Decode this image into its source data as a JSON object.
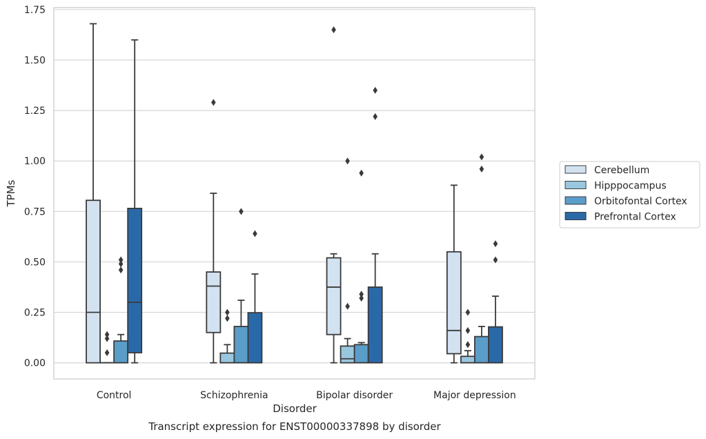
{
  "chart_data": {
    "type": "box",
    "title": "",
    "caption": "Transcript expression for ENST00000337898 by disorder",
    "xlabel": "Disorder",
    "ylabel": "TPMs",
    "ylim": [
      -0.08,
      1.76
    ],
    "yticks": [
      "0.00",
      "0.25",
      "0.50",
      "0.75",
      "1.00",
      "1.25",
      "1.50",
      "1.75"
    ],
    "grid": true,
    "legend_position": "right",
    "categories": [
      "Control",
      "Schizophrenia",
      "Bipolar disorder",
      "Major depression"
    ],
    "series": [
      {
        "name": "Cerebellum",
        "color": "#d2e2f1",
        "boxes": [
          {
            "min": 0.0,
            "q1": 0.0,
            "median": 0.25,
            "q3": 0.805,
            "max": 1.68,
            "outliers": []
          },
          {
            "min": 0.0,
            "q1": 0.15,
            "median": 0.38,
            "q3": 0.45,
            "max": 0.84,
            "outliers": [
              1.29
            ]
          },
          {
            "min": 0.0,
            "q1": 0.14,
            "median": 0.375,
            "q3": 0.52,
            "max": 0.54,
            "outliers": [
              1.65
            ]
          },
          {
            "min": 0.0,
            "q1": 0.045,
            "median": 0.16,
            "q3": 0.55,
            "max": 0.88,
            "outliers": []
          }
        ]
      },
      {
        "name": "Hipppocampus",
        "color": "#9ac7e0",
        "boxes": [
          {
            "min": 0.0,
            "q1": 0.0,
            "median": 0.0,
            "q3": 0.0,
            "max": 0.0,
            "outliers": [
              0.05,
              0.12,
              0.14
            ]
          },
          {
            "min": 0.0,
            "q1": 0.0,
            "median": 0.0,
            "q3": 0.048,
            "max": 0.09,
            "outliers": [
              0.22,
              0.25
            ]
          },
          {
            "min": 0.0,
            "q1": 0.0,
            "median": 0.02,
            "q3": 0.083,
            "max": 0.12,
            "outliers": [
              0.28,
              1.0
            ]
          },
          {
            "min": 0.0,
            "q1": 0.0,
            "median": 0.0,
            "q3": 0.032,
            "max": 0.06,
            "outliers": [
              0.09,
              0.16,
              0.25
            ]
          }
        ]
      },
      {
        "name": "Orbitofontal Cortex",
        "color": "#5b9dc9",
        "boxes": [
          {
            "min": 0.0,
            "q1": 0.0,
            "median": 0.0,
            "q3": 0.108,
            "max": 0.14,
            "outliers": [
              0.46,
              0.49,
              0.51
            ]
          },
          {
            "min": 0.0,
            "q1": 0.0,
            "median": 0.0,
            "q3": 0.18,
            "max": 0.31,
            "outliers": [
              0.75
            ]
          },
          {
            "min": 0.0,
            "q1": 0.0,
            "median": 0.0,
            "q3": 0.09,
            "max": 0.1,
            "outliers": [
              0.32,
              0.34,
              0.94
            ]
          },
          {
            "min": 0.0,
            "q1": 0.0,
            "median": 0.0,
            "q3": 0.13,
            "max": 0.18,
            "outliers": [
              0.96,
              1.02
            ]
          }
        ]
      },
      {
        "name": "Prefrontal Cortex",
        "color": "#2a69a8",
        "boxes": [
          {
            "min": 0.0,
            "q1": 0.05,
            "median": 0.3,
            "q3": 0.765,
            "max": 1.6,
            "outliers": []
          },
          {
            "min": 0.0,
            "q1": 0.0,
            "median": 0.0,
            "q3": 0.248,
            "max": 0.44,
            "outliers": [
              0.64
            ]
          },
          {
            "min": 0.0,
            "q1": 0.0,
            "median": 0.0,
            "q3": 0.375,
            "max": 0.54,
            "outliers": [
              1.22,
              1.35
            ]
          },
          {
            "min": 0.0,
            "q1": 0.0,
            "median": 0.0,
            "q3": 0.178,
            "max": 0.33,
            "outliers": [
              0.51,
              0.59
            ]
          }
        ]
      }
    ]
  }
}
